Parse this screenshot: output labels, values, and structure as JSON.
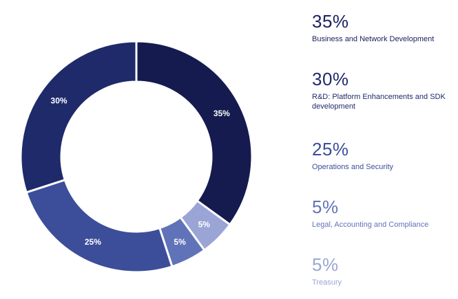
{
  "chart_data": {
    "type": "pie",
    "donut": true,
    "start_angle_deg": 0,
    "direction": "clockwise",
    "grid": false,
    "legend_position": "right",
    "slices": [
      {
        "label": "Business and Network Development",
        "value": 35,
        "display": "35%",
        "color": "#151b4f",
        "label_color": "#1b2260"
      },
      {
        "label": "R&D: Platform Enhancements and SDK development",
        "value": 30,
        "display": "30%",
        "color": "#1f2a6b",
        "label_color": "#1f2a6b"
      },
      {
        "label": "Operations  and Security",
        "value": 25,
        "display": "25%",
        "color": "#3c4e99",
        "label_color": "#3c4e99"
      },
      {
        "label": "Legal, Accounting and Compliance",
        "value": 5,
        "display": "5%",
        "color": "#6173b8",
        "label_color": "#6173b8"
      },
      {
        "label": "Treasury",
        "value": 5,
        "display": "5%",
        "color": "#9aa5d6",
        "label_color": "#9aa5d6"
      }
    ],
    "chart_order": [
      0,
      4,
      3,
      2,
      1
    ]
  }
}
